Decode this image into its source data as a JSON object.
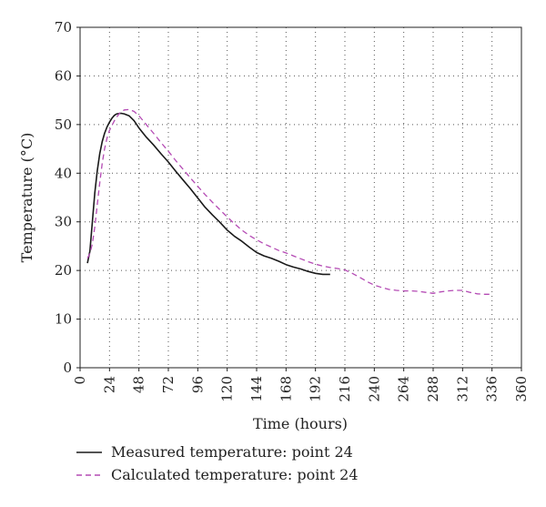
{
  "chart_data": {
    "type": "line",
    "title": "",
    "xlabel": "Time (hours)",
    "ylabel": "Temperature (°C)",
    "xlim": [
      0,
      360
    ],
    "ylim": [
      0,
      70
    ],
    "xticks": [
      "0",
      "24",
      "48",
      "72",
      "96",
      "120",
      "144",
      "168",
      "192",
      "216",
      "240",
      "264",
      "288",
      "312",
      "336",
      "360"
    ],
    "yticks": [
      "0",
      "10",
      "20",
      "30",
      "40",
      "50",
      "60",
      "70"
    ],
    "grid": "dotted",
    "legend_placement": "bottom-left, below plot",
    "series": [
      {
        "name": "Measured temperature: point 24",
        "color": "#1a1a1a",
        "style": "solid",
        "x": [
          6,
          8,
          10,
          12,
          14,
          16,
          18,
          20,
          22,
          24,
          26,
          28,
          30,
          32,
          34,
          36,
          40,
          44,
          48,
          54,
          60,
          66,
          72,
          78,
          84,
          90,
          96,
          102,
          108,
          114,
          120,
          126,
          132,
          138,
          144,
          150,
          156,
          162,
          168,
          174,
          180,
          186,
          192,
          198,
          204
        ],
        "values": [
          21.5,
          24,
          30,
          36,
          40.5,
          44,
          46.5,
          48.2,
          49.5,
          50.5,
          51.3,
          51.9,
          52.2,
          52.3,
          52.3,
          52.2,
          51.8,
          50.8,
          49.3,
          47.4,
          45.8,
          44,
          42.3,
          40.4,
          38.6,
          36.8,
          34.9,
          33,
          31.4,
          29.9,
          28.3,
          27,
          26,
          24.8,
          23.7,
          23,
          22.5,
          21.9,
          21.2,
          20.7,
          20.3,
          19.8,
          19.4,
          19.2,
          19.2
        ]
      },
      {
        "name": "Calculated temperature: point 24",
        "color": "#b44ab4",
        "style": "dashed",
        "x": [
          6,
          8,
          10,
          12,
          14,
          16,
          18,
          20,
          22,
          24,
          28,
          32,
          36,
          40,
          44,
          48,
          54,
          60,
          66,
          72,
          78,
          84,
          90,
          96,
          102,
          108,
          114,
          120,
          126,
          132,
          138,
          144,
          150,
          156,
          162,
          168,
          174,
          180,
          186,
          192,
          198,
          204,
          210,
          216,
          222,
          228,
          234,
          240,
          246,
          252,
          258,
          264,
          270,
          276,
          282,
          288,
          294,
          300,
          306,
          312,
          318,
          324,
          330,
          336
        ],
        "values": [
          22.5,
          23.5,
          25.5,
          29,
          33.5,
          38,
          42,
          45,
          47.2,
          48.8,
          50.8,
          52.3,
          53,
          53.1,
          52.7,
          51.8,
          50,
          48.2,
          46.3,
          44.5,
          42.6,
          40.8,
          39,
          37.3,
          35.6,
          34,
          32.5,
          31,
          29.6,
          28.3,
          27.2,
          26.3,
          25.5,
          24.8,
          24.1,
          23.6,
          23,
          22.4,
          21.8,
          21.3,
          20.9,
          20.6,
          20.4,
          20.1,
          19.4,
          18.6,
          17.7,
          17,
          16.5,
          16.1,
          15.9,
          15.8,
          15.8,
          15.7,
          15.5,
          15.3,
          15.6,
          15.8,
          15.9,
          15.9,
          15.5,
          15.2,
          15.1,
          15.1
        ]
      }
    ]
  }
}
